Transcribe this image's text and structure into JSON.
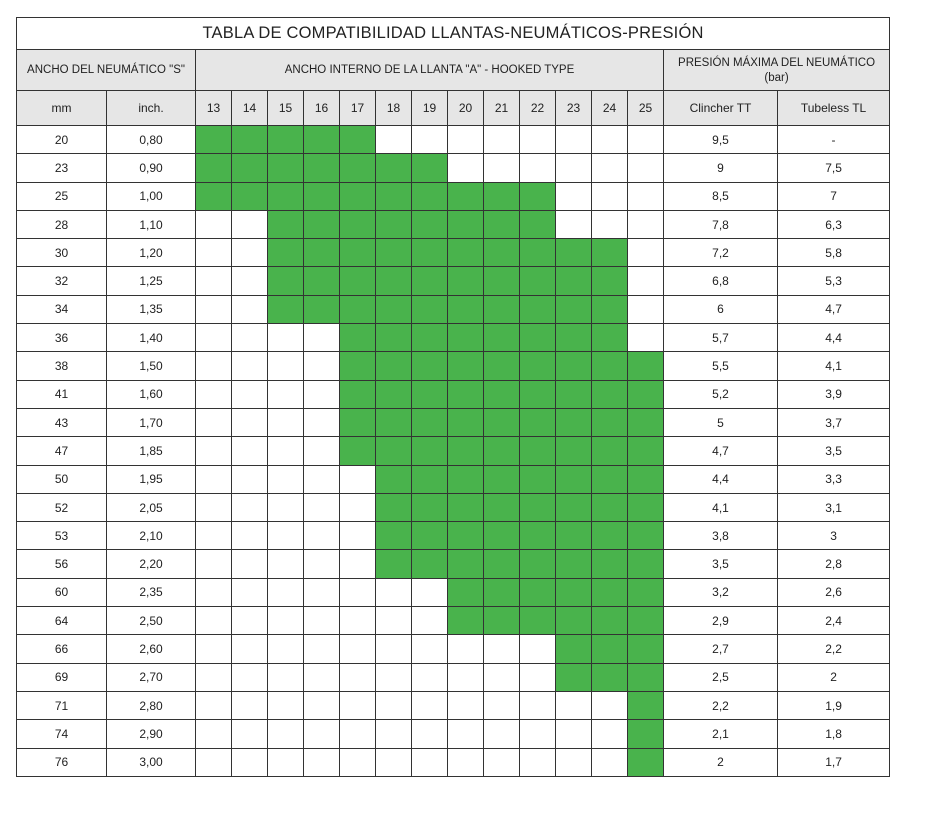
{
  "title": "TABLA DE COMPATIBILIDAD  LLANTAS-NEUMÁTICOS-PRESIÓN",
  "headers": {
    "tire_width": "ANCHO DEL NEUMÁTICO \"S\"",
    "rim_width": "ANCHO INTERNO DE LA LLANTA \"A\" - HOOKED TYPE",
    "pressure_line1": "PRESIÓN MÁXIMA DEL NEUMÁTICO",
    "pressure_line2": "(bar)",
    "mm": "mm",
    "inch": "inch.",
    "clincher": "Clincher TT",
    "tubeless": "Tubeless TL"
  },
  "rim_widths": [
    "13",
    "14",
    "15",
    "16",
    "17",
    "18",
    "19",
    "20",
    "21",
    "22",
    "23",
    "24",
    "25"
  ],
  "compat_color": "#49b34c",
  "rows": [
    {
      "mm": "20",
      "inch": "0,80",
      "tt": "9,5",
      "tl": "-",
      "from": "13",
      "to": "17"
    },
    {
      "mm": "23",
      "inch": "0,90",
      "tt": "9",
      "tl": "7,5",
      "from": "13",
      "to": "19"
    },
    {
      "mm": "25",
      "inch": "1,00",
      "tt": "8,5",
      "tl": "7",
      "from": "13",
      "to": "22"
    },
    {
      "mm": "28",
      "inch": "1,10",
      "tt": "7,8",
      "tl": "6,3",
      "from": "15",
      "to": "22"
    },
    {
      "mm": "30",
      "inch": "1,20",
      "tt": "7,2",
      "tl": "5,8",
      "from": "15",
      "to": "24"
    },
    {
      "mm": "32",
      "inch": "1,25",
      "tt": "6,8",
      "tl": "5,3",
      "from": "15",
      "to": "24"
    },
    {
      "mm": "34",
      "inch": "1,35",
      "tt": "6",
      "tl": "4,7",
      "from": "15",
      "to": "24"
    },
    {
      "mm": "36",
      "inch": "1,40",
      "tt": "5,7",
      "tl": "4,4",
      "from": "17",
      "to": "24"
    },
    {
      "mm": "38",
      "inch": "1,50",
      "tt": "5,5",
      "tl": "4,1",
      "from": "17",
      "to": "25"
    },
    {
      "mm": "41",
      "inch": "1,60",
      "tt": "5,2",
      "tl": "3,9",
      "from": "17",
      "to": "25"
    },
    {
      "mm": "43",
      "inch": "1,70",
      "tt": "5",
      "tl": "3,7",
      "from": "17",
      "to": "25"
    },
    {
      "mm": "47",
      "inch": "1,85",
      "tt": "4,7",
      "tl": "3,5",
      "from": "17",
      "to": "25"
    },
    {
      "mm": "50",
      "inch": "1,95",
      "tt": "4,4",
      "tl": "3,3",
      "from": "18",
      "to": "25"
    },
    {
      "mm": "52",
      "inch": "2,05",
      "tt": "4,1",
      "tl": "3,1",
      "from": "18",
      "to": "25"
    },
    {
      "mm": "53",
      "inch": "2,10",
      "tt": "3,8",
      "tl": "3",
      "from": "18",
      "to": "25"
    },
    {
      "mm": "56",
      "inch": "2,20",
      "tt": "3,5",
      "tl": "2,8",
      "from": "18",
      "to": "25"
    },
    {
      "mm": "60",
      "inch": "2,35",
      "tt": "3,2",
      "tl": "2,6",
      "from": "20",
      "to": "25"
    },
    {
      "mm": "64",
      "inch": "2,50",
      "tt": "2,9",
      "tl": "2,4",
      "from": "20",
      "to": "25"
    },
    {
      "mm": "66",
      "inch": "2,60",
      "tt": "2,7",
      "tl": "2,2",
      "from": "23",
      "to": "25"
    },
    {
      "mm": "69",
      "inch": "2,70",
      "tt": "2,5",
      "tl": "2",
      "from": "23",
      "to": "25"
    },
    {
      "mm": "71",
      "inch": "2,80",
      "tt": "2,2",
      "tl": "1,9",
      "from": "25",
      "to": "25"
    },
    {
      "mm": "74",
      "inch": "2,90",
      "tt": "2,1",
      "tl": "1,8",
      "from": "25",
      "to": "25"
    },
    {
      "mm": "76",
      "inch": "3,00",
      "tt": "2",
      "tl": "1,7",
      "from": "25",
      "to": "25"
    }
  ]
}
